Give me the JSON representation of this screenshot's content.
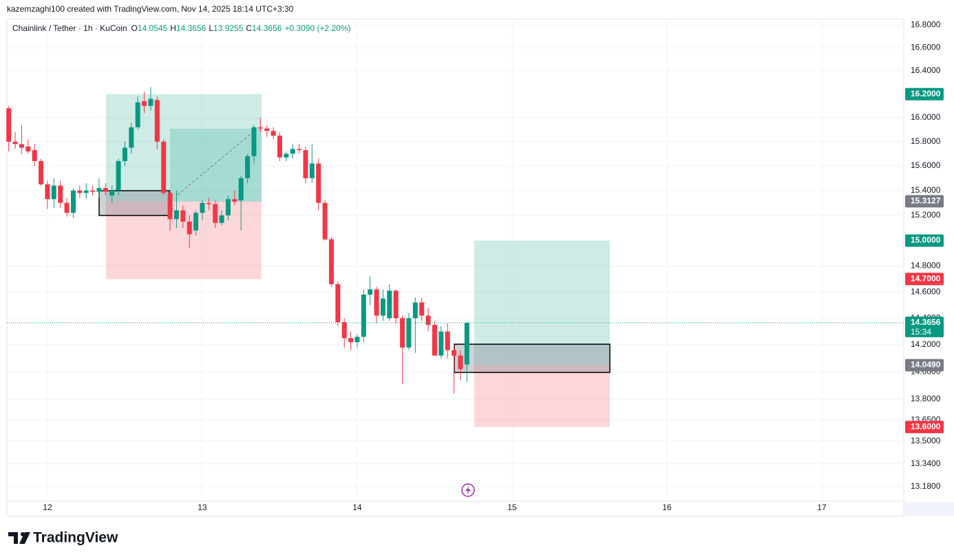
{
  "header": {
    "attribution": "kazemzaghi100 created with TradingView.com, Nov 14, 2025 18:14 UTC+3:30"
  },
  "legend": {
    "symbol": "Chainlink / Tether · 1h · KuCoin",
    "ohlc": [
      {
        "key": "O",
        "value": 14.0545
      },
      {
        "key": "H",
        "value": 14.3656
      },
      {
        "key": "L",
        "value": 13.9255
      },
      {
        "key": "C",
        "value": 14.3656
      }
    ],
    "change": "+0.3090 (+2.20%)"
  },
  "brand": "TradingView",
  "chart_data": {
    "type": "candlestick",
    "log_scale": true,
    "grid": true,
    "up_color": "#089981",
    "down_color": "#f23645",
    "x": [
      11.75,
      11.7917,
      11.8333,
      11.875,
      11.9167,
      11.9583,
      12,
      12.0417,
      12.0833,
      12.125,
      12.1667,
      12.2083,
      12.25,
      12.2917,
      12.3333,
      12.375,
      12.4167,
      12.4583,
      12.5,
      12.5417,
      12.5833,
      12.625,
      12.6667,
      12.7083,
      12.75,
      12.7917,
      12.8333,
      12.875,
      12.9167,
      12.9583,
      13,
      13.0417,
      13.0833,
      13.125,
      13.1667,
      13.2083,
      13.25,
      13.2917,
      13.3333,
      13.375,
      13.4167,
      13.4583,
      13.5,
      13.5417,
      13.5833,
      13.625,
      13.6667,
      13.7083,
      13.75,
      13.7917,
      13.8333,
      13.875,
      13.9167,
      13.9583,
      14,
      14.0417,
      14.0833,
      14.125,
      14.1667,
      14.2083,
      14.25,
      14.2917,
      14.3333,
      14.375,
      14.4167,
      14.4583,
      14.5,
      14.5417,
      14.5833,
      14.625,
      14.6667,
      14.7083
    ],
    "open": [
      16.08,
      15.8,
      15.78,
      15.76,
      15.73,
      15.64,
      15.45,
      15.33,
      15.44,
      15.3,
      15.22,
      15.4,
      15.38,
      15.4,
      15.39,
      15.42,
      15.36,
      15.4,
      15.64,
      15.75,
      15.92,
      16.14,
      16.1,
      16.15,
      15.8,
      15.38,
      15.17,
      15.24,
      15.15,
      15.08,
      15.22,
      15.3,
      15.29,
      15.14,
      15.2,
      15.33,
      15.32,
      15.5,
      15.68,
      15.92,
      15.91,
      15.89,
      15.85,
      15.67,
      15.7,
      15.74,
      15.73,
      15.5,
      15.62,
      15.3,
      15.01,
      14.66,
      14.37,
      14.25,
      14.22,
      14.26,
      14.58,
      14.62,
      14.42,
      14.4,
      14.61,
      14.4,
      14.18,
      14.4,
      14.52,
      14.42,
      14.35,
      14.12,
      14.3,
      14.16,
      14.12,
      14.0545
    ],
    "high": [
      16.1,
      15.88,
      15.94,
      15.82,
      15.78,
      15.66,
      15.48,
      15.5,
      15.48,
      15.34,
      15.42,
      15.44,
      15.46,
      15.44,
      15.5,
      15.46,
      15.44,
      15.66,
      15.8,
      15.96,
      16.18,
      16.22,
      16.26,
      16.18,
      15.82,
      15.4,
      15.4,
      15.28,
      15.2,
      15.24,
      15.32,
      15.34,
      15.32,
      15.24,
      15.36,
      15.4,
      15.52,
      15.7,
      15.94,
      16.0,
      15.94,
      15.92,
      15.88,
      15.72,
      15.78,
      15.78,
      15.76,
      15.78,
      15.66,
      15.32,
      15.03,
      14.68,
      14.4,
      14.3,
      14.28,
      14.62,
      14.72,
      14.64,
      14.62,
      14.66,
      14.62,
      14.42,
      14.44,
      14.56,
      14.56,
      14.48,
      14.38,
      14.34,
      14.36,
      14.2,
      14.16,
      14.3656
    ],
    "low": [
      15.72,
      15.74,
      15.7,
      15.7,
      15.6,
      15.44,
      15.25,
      15.26,
      15.26,
      15.19,
      15.18,
      15.34,
      15.33,
      15.36,
      15.34,
      15.36,
      15.3,
      15.36,
      15.6,
      15.7,
      15.9,
      16.04,
      16.06,
      15.74,
      15.36,
      15.08,
      15.1,
      15.1,
      14.94,
      15.04,
      15.16,
      15.24,
      15.1,
      15.12,
      15.16,
      15.28,
      15.08,
      15.46,
      15.62,
      15.88,
      15.84,
      15.82,
      15.64,
      15.64,
      15.66,
      15.7,
      15.46,
      15.46,
      15.24,
      15.0,
      14.64,
      14.34,
      14.18,
      14.16,
      14.18,
      14.22,
      14.5,
      14.36,
      14.38,
      14.38,
      14.36,
      13.91,
      14.16,
      14.14,
      14.38,
      14.3,
      14.12,
      14.1,
      14.1,
      13.84,
      13.94,
      13.9255
    ],
    "close": [
      15.8,
      15.78,
      15.75,
      15.72,
      15.64,
      15.45,
      15.33,
      15.44,
      15.3,
      15.22,
      15.4,
      15.38,
      15.4,
      15.39,
      15.42,
      15.39,
      15.4,
      15.64,
      15.75,
      15.92,
      16.13,
      16.1,
      16.16,
      15.8,
      15.38,
      15.17,
      15.24,
      15.15,
      15.05,
      15.22,
      15.3,
      15.29,
      15.14,
      15.2,
      15.33,
      15.31,
      15.5,
      15.68,
      15.92,
      15.91,
      15.89,
      15.85,
      15.67,
      15.7,
      15.74,
      15.73,
      15.5,
      15.62,
      15.3,
      15.01,
      14.66,
      14.37,
      14.25,
      14.22,
      14.26,
      14.58,
      14.62,
      14.42,
      14.55,
      14.61,
      14.4,
      14.18,
      14.4,
      14.52,
      14.42,
      14.35,
      14.12,
      14.3,
      14.16,
      14.12,
      14.02,
      14.3656
    ],
    "xlim": [
      11.738,
      17.529
    ],
    "xticks": [
      12,
      13,
      14,
      15,
      16,
      17
    ],
    "ylim": [
      13.08,
      16.85
    ],
    "yticks": [
      {
        "value": 16.8,
        "label": "16.8000"
      },
      {
        "value": 16.6,
        "label": "16.6000"
      },
      {
        "value": 16.4,
        "label": "16.4000"
      },
      {
        "value": 16.0,
        "label": "16.0000"
      },
      {
        "value": 15.8,
        "label": "15.8000"
      },
      {
        "value": 15.6,
        "label": "15.6000"
      },
      {
        "value": 15.4,
        "label": "15.4000"
      },
      {
        "value": 15.2,
        "label": "15.2000"
      },
      {
        "value": 14.8,
        "label": "14.8000"
      },
      {
        "value": 14.6,
        "label": "14.6000"
      },
      {
        "value": 14.4,
        "label": "14.4000"
      },
      {
        "value": 14.2,
        "label": "14.2000"
      },
      {
        "value": 14.0,
        "label": "14.0000"
      },
      {
        "value": 13.8,
        "label": "13.8000"
      },
      {
        "value": 13.65,
        "label": "13.6500"
      },
      {
        "value": 13.5,
        "label": "13.5000"
      },
      {
        "value": 13.34,
        "label": "13.3400"
      },
      {
        "value": 13.18,
        "label": "13.1800"
      }
    ],
    "price_labels": [
      {
        "value": 16.2,
        "label": "16.2000",
        "color": "#089981"
      },
      {
        "value": 15.3127,
        "label": "15.3127",
        "color": "#787b86"
      },
      {
        "value": 15.0,
        "label": "15.0000",
        "color": "#089981"
      },
      {
        "value": 14.7,
        "label": "14.7000",
        "color": "#f23645"
      },
      {
        "value": 14.3656,
        "label": "14.3656",
        "color": "#089981"
      },
      {
        "value": 14.049,
        "label": "14.0490",
        "color": "#787b86"
      },
      {
        "value": 13.6,
        "label": "13.6000",
        "color": "#f23645"
      }
    ],
    "countdown": "15:34"
  }
}
